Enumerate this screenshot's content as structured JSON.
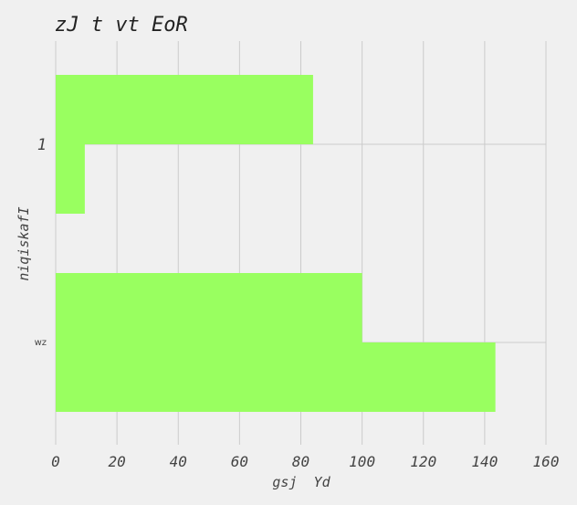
{
  "chart_data": {
    "type": "bar",
    "orientation": "horizontal",
    "title": "zJ t vt EoR",
    "xlabel": "gsj  Yd",
    "ylabel": "niqiskafI",
    "categories": [
      "1",
      "wz"
    ],
    "series": [
      {
        "values": [
          84,
          100
        ]
      },
      {
        "values": [
          9.5,
          143.5
        ]
      }
    ],
    "xlim": [
      0,
      160
    ],
    "xticks": [
      "0",
      "20",
      "40",
      "60",
      "80",
      "100",
      "120",
      "140",
      "160"
    ],
    "grid": true,
    "bar_color": "#99ff60",
    "background": "#f0f0f0",
    "grid_color": "#cbcbcb",
    "text_color": "#444444"
  }
}
